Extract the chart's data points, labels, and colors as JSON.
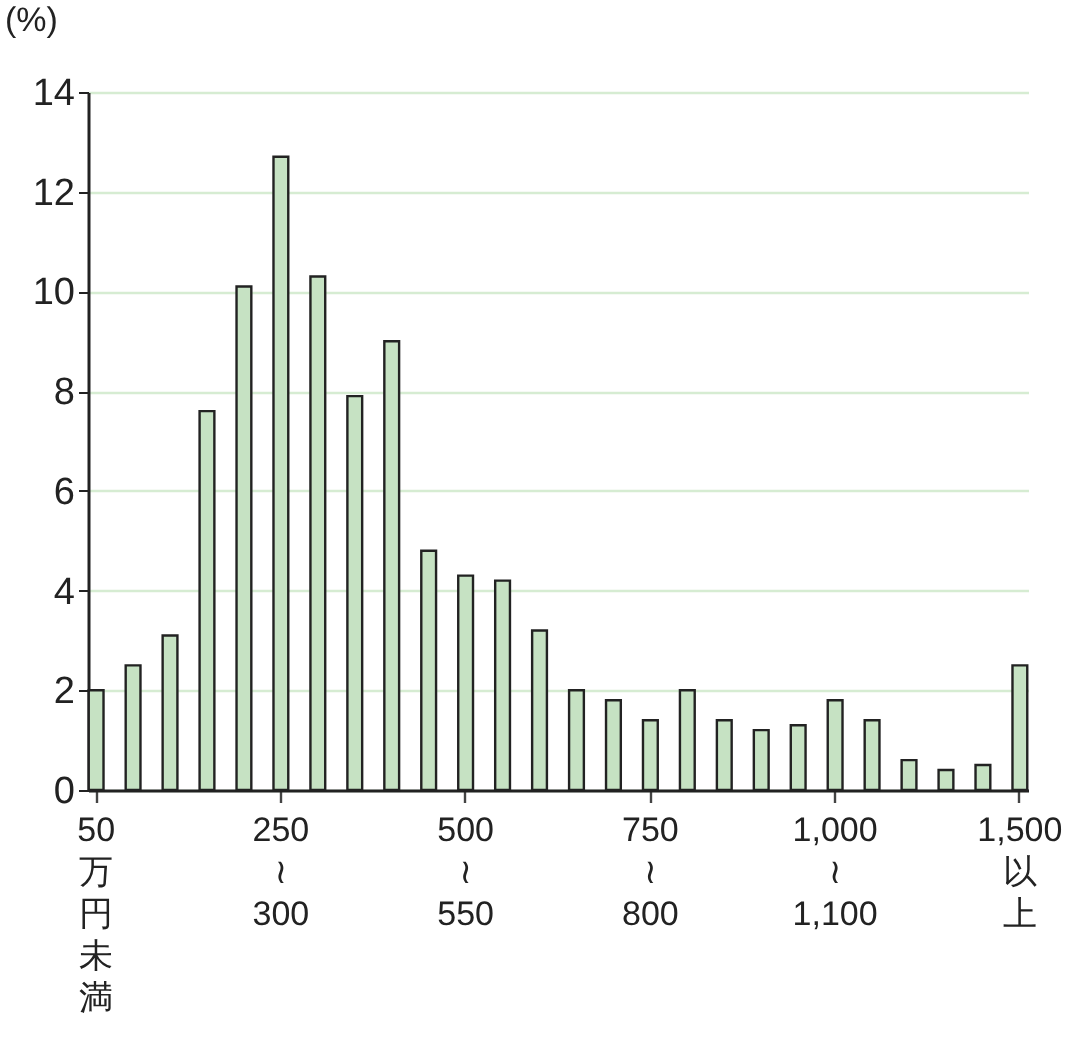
{
  "chart_data": {
    "type": "bar",
    "ylabel": "(%)",
    "categories": [
      "50万円未満",
      null,
      null,
      null,
      null,
      "250≀300",
      null,
      null,
      null,
      null,
      "500≀550",
      null,
      null,
      null,
      null,
      "750≀800",
      null,
      null,
      null,
      null,
      "1,000≀1,100",
      null,
      null,
      null,
      null,
      "1,500以上"
    ],
    "values": [
      2.0,
      2.5,
      3.1,
      7.6,
      10.1,
      12.7,
      10.3,
      7.9,
      9.0,
      4.8,
      4.3,
      4.2,
      3.2,
      2.0,
      1.8,
      1.4,
      2.0,
      1.4,
      1.2,
      1.3,
      1.8,
      1.4,
      0.6,
      0.4,
      0.5,
      2.5
    ],
    "color": "#c6e2c3",
    "ylim": [
      0,
      14
    ],
    "yticks": [
      0,
      2,
      4,
      6,
      8,
      10,
      12,
      14
    ],
    "grid": "y"
  }
}
